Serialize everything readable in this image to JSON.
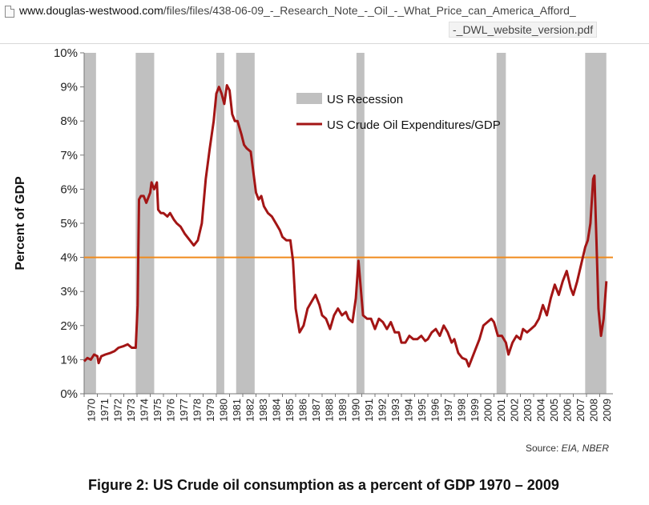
{
  "browser": {
    "url_host": "www.douglas-westwood.com",
    "url_path": "/files/files/438-06-09_-_Research_Note_-_Oil_-_What_Price_can_America_Afford_",
    "url_path_cont": "-_DWL_website_version.pdf",
    "icon": "page-icon"
  },
  "caption": "Figure 2: US Crude oil consumption as a percent of GDP 1970 – 2009",
  "chart_data": {
    "type": "line",
    "title": "",
    "xlabel": "",
    "ylabel": "Percent of GDP",
    "x_range": [
      1970,
      2010
    ],
    "ylim": [
      0,
      10
    ],
    "y_ticks": [
      "0%",
      "1%",
      "2%",
      "3%",
      "4%",
      "5%",
      "6%",
      "7%",
      "8%",
      "9%",
      "10%"
    ],
    "x_ticks": [
      "1970",
      "1971",
      "1972",
      "1973",
      "1974",
      "1975",
      "1976",
      "1977",
      "1978",
      "1979",
      "1980",
      "1981",
      "1982",
      "1983",
      "1984",
      "1985",
      "1986",
      "1987",
      "1988",
      "1989",
      "1990",
      "1991",
      "1992",
      "1993",
      "1994",
      "1995",
      "1996",
      "1997",
      "1998",
      "1999",
      "2000",
      "2001",
      "2002",
      "2003",
      "2004",
      "2005",
      "2006",
      "2007",
      "2008",
      "2009"
    ],
    "grid": false,
    "legend_placement": "top-center",
    "source_label": "Source: ",
    "source_text": "EIA, NBER",
    "colors": {
      "series": "#a31515",
      "recession": "#c0c0c0",
      "reference": "#f08a1c",
      "axis": "#777777"
    },
    "recessions": [
      [
        1970.0,
        1970.9
      ],
      [
        1973.9,
        1975.3
      ],
      [
        1980.0,
        1980.6
      ],
      [
        1981.5,
        1982.9
      ],
      [
        1990.6,
        1991.2
      ],
      [
        2001.2,
        2001.9
      ],
      [
        2007.9,
        2009.5
      ]
    ],
    "reference_line": {
      "y": 4
    },
    "series": [
      {
        "name": "US Crude Oil Expenditures/GDP",
        "type": "line",
        "points": [
          [
            1970.0,
            0.95
          ],
          [
            1970.25,
            1.05
          ],
          [
            1970.5,
            1.0
          ],
          [
            1970.75,
            1.15
          ],
          [
            1971.0,
            1.1
          ],
          [
            1971.1,
            0.9
          ],
          [
            1971.3,
            1.1
          ],
          [
            1971.6,
            1.15
          ],
          [
            1972.0,
            1.2
          ],
          [
            1972.3,
            1.25
          ],
          [
            1972.6,
            1.35
          ],
          [
            1973.0,
            1.4
          ],
          [
            1973.3,
            1.45
          ],
          [
            1973.6,
            1.35
          ],
          [
            1973.9,
            1.35
          ],
          [
            1974.05,
            2.6
          ],
          [
            1974.15,
            5.7
          ],
          [
            1974.3,
            5.8
          ],
          [
            1974.5,
            5.8
          ],
          [
            1974.7,
            5.6
          ],
          [
            1975.0,
            5.9
          ],
          [
            1975.1,
            6.2
          ],
          [
            1975.3,
            6.0
          ],
          [
            1975.5,
            6.2
          ],
          [
            1975.6,
            5.4
          ],
          [
            1975.8,
            5.3
          ],
          [
            1976.0,
            5.3
          ],
          [
            1976.3,
            5.2
          ],
          [
            1976.5,
            5.3
          ],
          [
            1976.8,
            5.1
          ],
          [
            1977.0,
            5.0
          ],
          [
            1977.3,
            4.9
          ],
          [
            1977.6,
            4.7
          ],
          [
            1978.0,
            4.5
          ],
          [
            1978.3,
            4.35
          ],
          [
            1978.6,
            4.5
          ],
          [
            1978.9,
            5.0
          ],
          [
            1979.2,
            6.3
          ],
          [
            1979.5,
            7.2
          ],
          [
            1979.8,
            8.0
          ],
          [
            1980.0,
            8.8
          ],
          [
            1980.2,
            9.0
          ],
          [
            1980.4,
            8.8
          ],
          [
            1980.6,
            8.5
          ],
          [
            1980.8,
            9.05
          ],
          [
            1981.0,
            8.9
          ],
          [
            1981.2,
            8.2
          ],
          [
            1981.4,
            8.0
          ],
          [
            1981.6,
            8.0
          ],
          [
            1981.9,
            7.6
          ],
          [
            1982.1,
            7.3
          ],
          [
            1982.3,
            7.2
          ],
          [
            1982.6,
            7.1
          ],
          [
            1982.8,
            6.5
          ],
          [
            1983.0,
            5.9
          ],
          [
            1983.2,
            5.7
          ],
          [
            1983.4,
            5.8
          ],
          [
            1983.6,
            5.5
          ],
          [
            1983.9,
            5.3
          ],
          [
            1984.2,
            5.2
          ],
          [
            1984.5,
            5.0
          ],
          [
            1984.8,
            4.8
          ],
          [
            1985.0,
            4.6
          ],
          [
            1985.3,
            4.5
          ],
          [
            1985.6,
            4.5
          ],
          [
            1985.8,
            3.9
          ],
          [
            1986.0,
            2.5
          ],
          [
            1986.3,
            1.8
          ],
          [
            1986.6,
            2.0
          ],
          [
            1986.9,
            2.5
          ],
          [
            1987.2,
            2.7
          ],
          [
            1987.5,
            2.9
          ],
          [
            1987.8,
            2.6
          ],
          [
            1988.0,
            2.3
          ],
          [
            1988.3,
            2.2
          ],
          [
            1988.6,
            1.9
          ],
          [
            1988.9,
            2.3
          ],
          [
            1989.2,
            2.5
          ],
          [
            1989.5,
            2.3
          ],
          [
            1989.8,
            2.4
          ],
          [
            1990.0,
            2.2
          ],
          [
            1990.3,
            2.1
          ],
          [
            1990.55,
            2.8
          ],
          [
            1990.75,
            3.9
          ],
          [
            1990.9,
            3.2
          ],
          [
            1991.1,
            2.3
          ],
          [
            1991.4,
            2.2
          ],
          [
            1991.7,
            2.2
          ],
          [
            1992.0,
            1.9
          ],
          [
            1992.3,
            2.2
          ],
          [
            1992.6,
            2.1
          ],
          [
            1992.9,
            1.9
          ],
          [
            1993.2,
            2.1
          ],
          [
            1993.5,
            1.8
          ],
          [
            1993.8,
            1.8
          ],
          [
            1994.0,
            1.5
          ],
          [
            1994.3,
            1.5
          ],
          [
            1994.6,
            1.7
          ],
          [
            1994.9,
            1.6
          ],
          [
            1995.2,
            1.6
          ],
          [
            1995.5,
            1.7
          ],
          [
            1995.8,
            1.55
          ],
          [
            1996.0,
            1.6
          ],
          [
            1996.3,
            1.8
          ],
          [
            1996.6,
            1.9
          ],
          [
            1996.9,
            1.7
          ],
          [
            1997.2,
            2.0
          ],
          [
            1997.5,
            1.8
          ],
          [
            1997.8,
            1.5
          ],
          [
            1998.0,
            1.6
          ],
          [
            1998.3,
            1.2
          ],
          [
            1998.6,
            1.05
          ],
          [
            1998.9,
            1.0
          ],
          [
            1999.1,
            0.8
          ],
          [
            1999.3,
            1.0
          ],
          [
            1999.6,
            1.3
          ],
          [
            1999.9,
            1.6
          ],
          [
            2000.2,
            2.0
          ],
          [
            2000.5,
            2.1
          ],
          [
            2000.8,
            2.2
          ],
          [
            2001.0,
            2.1
          ],
          [
            2001.3,
            1.7
          ],
          [
            2001.6,
            1.7
          ],
          [
            2001.9,
            1.5
          ],
          [
            2002.1,
            1.15
          ],
          [
            2002.4,
            1.5
          ],
          [
            2002.7,
            1.7
          ],
          [
            2003.0,
            1.6
          ],
          [
            2003.2,
            1.9
          ],
          [
            2003.5,
            1.8
          ],
          [
            2003.8,
            1.9
          ],
          [
            2004.1,
            2.0
          ],
          [
            2004.4,
            2.2
          ],
          [
            2004.7,
            2.6
          ],
          [
            2005.0,
            2.3
          ],
          [
            2005.3,
            2.8
          ],
          [
            2005.6,
            3.2
          ],
          [
            2005.9,
            2.9
          ],
          [
            2006.2,
            3.3
          ],
          [
            2006.5,
            3.6
          ],
          [
            2006.8,
            3.1
          ],
          [
            2007.0,
            2.9
          ],
          [
            2007.3,
            3.3
          ],
          [
            2007.6,
            3.8
          ],
          [
            2007.9,
            4.3
          ],
          [
            2008.1,
            4.5
          ],
          [
            2008.3,
            5.0
          ],
          [
            2008.5,
            6.3
          ],
          [
            2008.6,
            6.4
          ],
          [
            2008.75,
            4.5
          ],
          [
            2008.9,
            2.5
          ],
          [
            2009.1,
            1.7
          ],
          [
            2009.3,
            2.2
          ],
          [
            2009.5,
            3.3
          ]
        ]
      },
      {
        "name": "US Recession",
        "type": "band"
      }
    ]
  }
}
